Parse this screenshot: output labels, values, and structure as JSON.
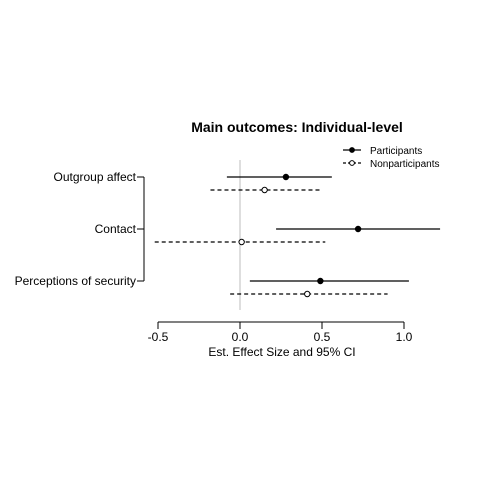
{
  "chart_data": {
    "type": "forest",
    "title": "Main outcomes: Individual-level",
    "xlabel": "Est. Effect Size and 95% CI",
    "ylabel": "",
    "xlim": [
      -0.5,
      1.0
    ],
    "x_ticks": [
      -0.5,
      0.0,
      0.5,
      1.0
    ],
    "x_tick_labels": [
      "-0.5",
      "0.0",
      "0.5",
      "1.0"
    ],
    "reference_line": 0,
    "grid": false,
    "legend_position": "top-right",
    "categories": [
      "Outgroup affect",
      "Contact",
      "Perceptions of security"
    ],
    "series": [
      {
        "name": "Participants",
        "marker": "filled-circle",
        "line_style": "solid",
        "estimates": [
          0.28,
          0.72,
          0.49
        ],
        "ci_low": [
          -0.08,
          0.22,
          0.06
        ],
        "ci_high": [
          0.56,
          1.22,
          1.03
        ]
      },
      {
        "name": "Nonparticipants",
        "marker": "open-circle",
        "line_style": "dashed",
        "estimates": [
          0.15,
          0.01,
          0.41
        ],
        "ci_low": [
          -0.18,
          -0.52,
          -0.06
        ],
        "ci_high": [
          0.49,
          0.52,
          0.9
        ]
      }
    ]
  }
}
